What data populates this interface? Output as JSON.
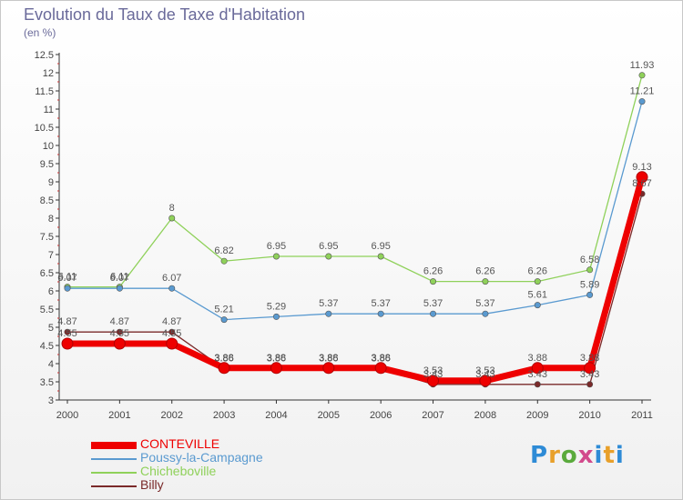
{
  "title": "Evolution du Taux de Taxe d'Habitation",
  "subtitle": "(en %)",
  "logo_text": "Proxiti",
  "chart_data": {
    "type": "line",
    "x": [
      "2000",
      "2001",
      "2002",
      "2003",
      "2004",
      "2005",
      "2006",
      "2007",
      "2008",
      "2009",
      "2010",
      "2011"
    ],
    "ylim": [
      3,
      12.5
    ],
    "yticks": [
      "3",
      "3.5",
      "4",
      "4.5",
      "5",
      "5.5",
      "6",
      "6.5",
      "7",
      "7.5",
      "8",
      "8.5",
      "9",
      "9.5",
      "10",
      "10.5",
      "11",
      "11.5",
      "12",
      "12.5"
    ],
    "grid": false,
    "legend_position": "bottom-left",
    "series": [
      {
        "name": "Billy",
        "color": "#7a2a2a",
        "values": [
          4.87,
          4.87,
          4.87,
          3.86,
          3.86,
          3.86,
          3.86,
          3.43,
          3.43,
          3.43,
          3.43,
          8.67
        ],
        "labels": [
          "4.87",
          "4.87",
          "4.87",
          "3.86",
          "3.86",
          "3.86",
          "3.86",
          "3.43",
          "3.43",
          "3.43",
          "3.43",
          "8.67"
        ]
      },
      {
        "name": "Chicheboville",
        "color": "#8fd15a",
        "values": [
          6.11,
          6.11,
          8,
          6.82,
          6.95,
          6.95,
          6.95,
          6.26,
          6.26,
          6.26,
          6.58,
          11.93
        ],
        "labels": [
          "6.11",
          "6.11",
          "8",
          "6.82",
          "6.95",
          "6.95",
          "6.95",
          "6.26",
          "6.26",
          "6.26",
          "6.58",
          "11.93"
        ]
      },
      {
        "name": "Poussy-la-Campagne",
        "color": "#5a9ad0",
        "values": [
          6.07,
          6.07,
          6.07,
          5.21,
          5.29,
          5.37,
          5.37,
          5.37,
          5.37,
          5.61,
          5.89,
          11.21
        ],
        "labels": [
          "6.07",
          "6.07",
          "6.07",
          "5.21",
          "5.29",
          "5.37",
          "5.37",
          "5.37",
          "5.37",
          "5.61",
          "5.89",
          "11.21"
        ]
      },
      {
        "name": "CONTEVILLE",
        "color": "#ee0000",
        "values": [
          4.55,
          4.55,
          4.55,
          3.88,
          3.88,
          3.88,
          3.88,
          3.53,
          3.53,
          3.88,
          3.88,
          9.13
        ],
        "labels": [
          "4.55",
          "4.55",
          "4.55",
          "3.88",
          "3.88",
          "3.88",
          "3.88",
          "3.53",
          "3.53",
          "3.88",
          "3.88",
          "9.13"
        ]
      }
    ],
    "legend": [
      {
        "name": "CONTEVILLE",
        "color": "#ee0000"
      },
      {
        "name": "Poussy-la-Campagne",
        "color": "#5a9ad0"
      },
      {
        "name": "Chicheboville",
        "color": "#8fd15a"
      },
      {
        "name": "Billy",
        "color": "#7a2a2a"
      }
    ]
  }
}
